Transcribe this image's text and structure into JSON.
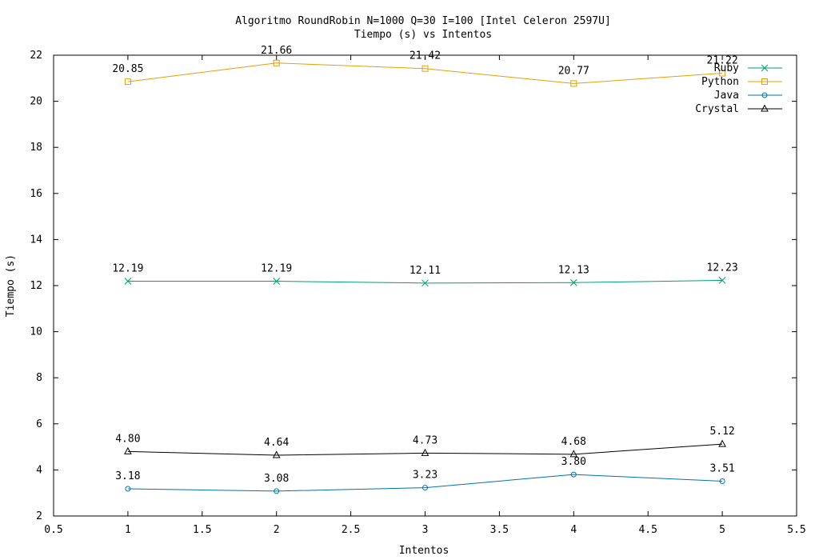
{
  "chart_data": {
    "type": "line",
    "title": "Algoritmo RoundRobin N=1000 Q=30 I=100 [Intel Celeron 2597U]",
    "subtitle": "Tiempo (s) vs Intentos",
    "xlabel": "Intentos",
    "ylabel": "Tiempo (s)",
    "xlim": [
      0.5,
      5.5
    ],
    "ylim": [
      2,
      22
    ],
    "x_ticks": [
      "0.5",
      "1",
      "1.5",
      "2",
      "2.5",
      "3",
      "3.5",
      "4",
      "4.5",
      "5",
      "5.5"
    ],
    "y_ticks": [
      "2",
      "4",
      "6",
      "8",
      "10",
      "12",
      "14",
      "16",
      "18",
      "20",
      "22"
    ],
    "grid": false,
    "legend_position": "top-right",
    "x": [
      1,
      2,
      3,
      4,
      5
    ],
    "series": [
      {
        "name": "Ruby",
        "color": "#009e73",
        "marker": "x",
        "values": [
          12.19,
          12.19,
          12.11,
          12.13,
          12.23
        ],
        "labels": [
          "12.19",
          "12.19",
          "12.11",
          "12.13",
          "12.23"
        ]
      },
      {
        "name": "Python",
        "color": "#e69f00",
        "marker": "square",
        "values": [
          20.85,
          21.66,
          21.42,
          20.77,
          21.22
        ],
        "labels": [
          "20.85",
          "21.66",
          "21.42",
          "20.77",
          "21.22"
        ]
      },
      {
        "name": "Java",
        "color": "#0072b2",
        "marker": "circle",
        "values": [
          3.18,
          3.08,
          3.23,
          3.8,
          3.51
        ],
        "labels": [
          "3.18",
          "3.08",
          "3.23",
          "3.80",
          "3.51"
        ]
      },
      {
        "name": "Crystal",
        "color": "#000000",
        "marker": "triangle",
        "values": [
          4.8,
          4.64,
          4.73,
          4.68,
          5.12
        ],
        "labels": [
          "4.80",
          "4.64",
          "4.73",
          "4.68",
          "5.12"
        ]
      }
    ]
  }
}
